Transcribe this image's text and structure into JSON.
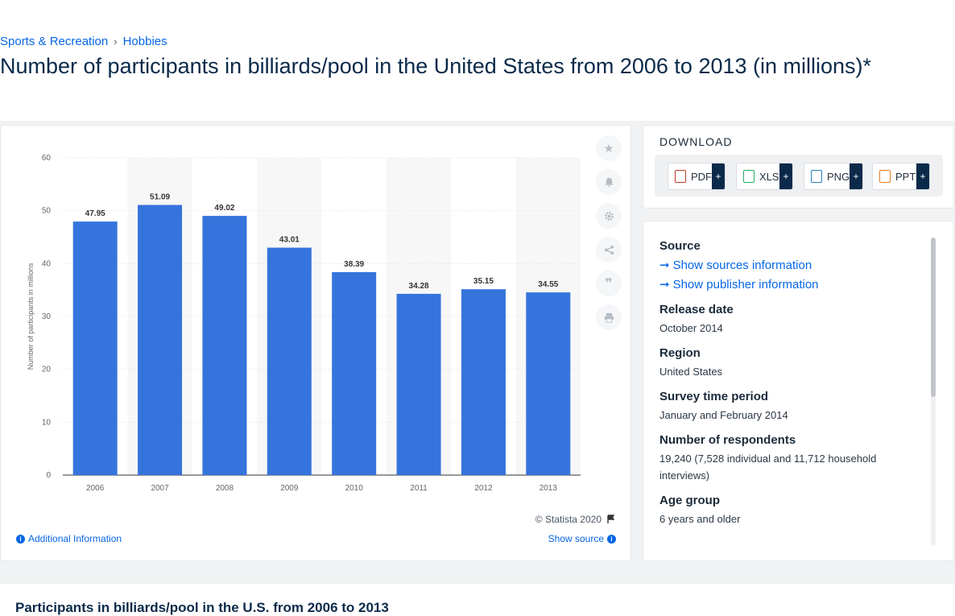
{
  "breadcrumb": {
    "item1": "Sports & Recreation",
    "item2": "Hobbies",
    "separator": "›"
  },
  "title": "Number of participants in billiards/pool in the United States from 2006 to 2013 (in millions)*",
  "chart_data": {
    "type": "bar",
    "categories": [
      "2006",
      "2007",
      "2008",
      "2009",
      "2010",
      "2011",
      "2012",
      "2013"
    ],
    "values": [
      47.95,
      51.09,
      49.02,
      43.01,
      38.39,
      34.28,
      35.15,
      34.55
    ],
    "data_labels": [
      "47.95",
      "51.09",
      "49.02",
      "43.01",
      "38.39",
      "34.28",
      "35.15",
      "34.55"
    ],
    "ylabel": "Number of participants in millions",
    "xlabel": "",
    "ylim": [
      0,
      60
    ],
    "yticks": [
      "0",
      "10",
      "20",
      "30",
      "40",
      "50",
      "60"
    ],
    "bar_color": "#3574dc",
    "grid": true
  },
  "chart_footer": {
    "copyright": "© Statista 2020",
    "additional_info": "Additional Information",
    "show_source": "Show source"
  },
  "download": {
    "title": "DOWNLOAD",
    "buttons": [
      "PDF",
      "XLS",
      "PNG",
      "PPT"
    ],
    "plus": "+"
  },
  "details": {
    "source_label": "Source",
    "show_sources": "Show sources information",
    "show_publisher": "Show publisher information",
    "release_date_label": "Release date",
    "release_date": "October 2014",
    "region_label": "Region",
    "region": "United States",
    "survey_period_label": "Survey time period",
    "survey_period": "January and February 2014",
    "respondents_label": "Number of respondents",
    "respondents": "19,240 (7,528 individual and 11,712 household interviews)",
    "age_group_label": "Age group",
    "age_group": "6 years and older"
  },
  "lower": {
    "title": "Participants in billiards/pool in the U.S. from 2006 to 2013"
  }
}
